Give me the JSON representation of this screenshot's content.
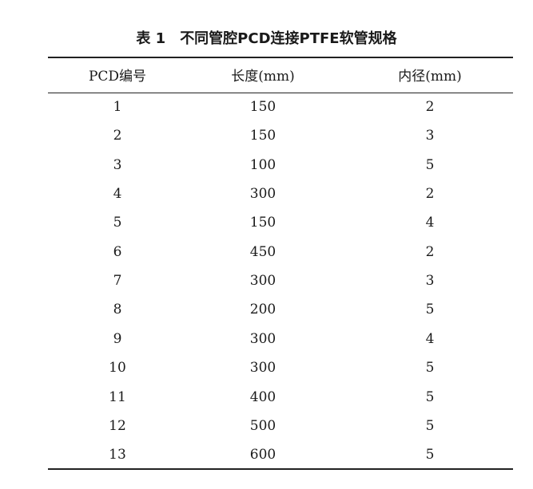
{
  "table": {
    "number": "表 1",
    "title": "不同管腔PCD连接PTFE软管规格",
    "headers": [
      "PCD编号",
      "长度(mm)",
      "内径(mm)"
    ],
    "rows": [
      [
        "1",
        "150",
        "2"
      ],
      [
        "2",
        "150",
        "3"
      ],
      [
        "3",
        "100",
        "5"
      ],
      [
        "4",
        "300",
        "2"
      ],
      [
        "5",
        "150",
        "4"
      ],
      [
        "6",
        "450",
        "2"
      ],
      [
        "7",
        "300",
        "3"
      ],
      [
        "8",
        "200",
        "5"
      ],
      [
        "9",
        "300",
        "4"
      ],
      [
        "10",
        "300",
        "5"
      ],
      [
        "11",
        "400",
        "5"
      ],
      [
        "12",
        "500",
        "5"
      ],
      [
        "13",
        "600",
        "5"
      ]
    ]
  }
}
